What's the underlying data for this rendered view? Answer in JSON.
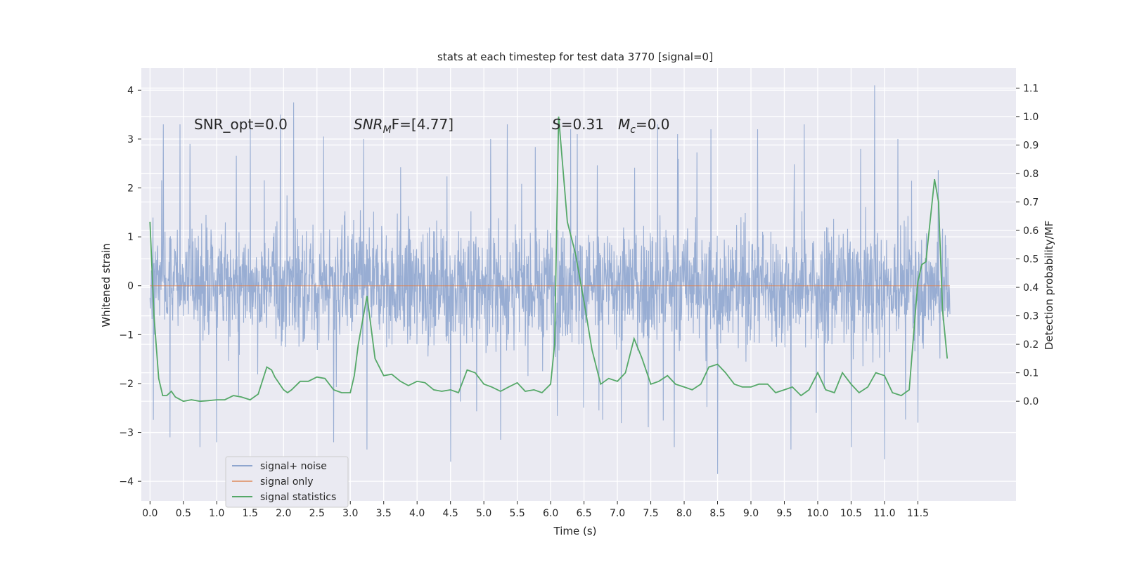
{
  "chart_data": {
    "type": "line",
    "title": "stats at each timestep for test data 3770 [signal=0]",
    "xlabel": "Time (s)",
    "ylabel_left": "Whitened strain",
    "ylabel_right": "Detection probability/MF",
    "xlim": [
      -0.13,
      12.97
    ],
    "ylim_left": [
      -4.4,
      4.45
    ],
    "ylim_right": [
      -0.35,
      1.17
    ],
    "x_ticks": [
      0.0,
      0.5,
      1.0,
      1.5,
      2.0,
      2.5,
      3.0,
      3.5,
      4.0,
      4.5,
      5.0,
      5.5,
      6.0,
      6.5,
      7.0,
      7.5,
      8.0,
      8.5,
      9.0,
      9.5,
      10.0,
      10.5,
      11.0,
      11.5
    ],
    "x_tick_labels": [
      "0.0",
      "0.5",
      "1.0",
      "1.5",
      "2.0",
      "2.5",
      "3.0",
      "3.5",
      "4.0",
      "4.5",
      "5.0",
      "5.5",
      "6.0",
      "6.5",
      "7.0",
      "7.5",
      "8.0",
      "8.5",
      "9.0",
      "9.5",
      "10.0",
      "10.5",
      "11.0",
      "11.5"
    ],
    "y_left_ticks": [
      -4,
      -3,
      -2,
      -1,
      0,
      1,
      2,
      3,
      4
    ],
    "y_left_tick_labels": [
      "−4",
      "−3",
      "−2",
      "−1",
      "0",
      "1",
      "2",
      "3",
      "4"
    ],
    "y_right_ticks": [
      0.0,
      0.1,
      0.2,
      0.3,
      0.4,
      0.5,
      0.6,
      0.7,
      0.8,
      0.9,
      1.0,
      1.1
    ],
    "y_right_tick_labels": [
      "0.0",
      "0.1",
      "0.2",
      "0.3",
      "0.4",
      "0.5",
      "0.6",
      "0.7",
      "0.8",
      "0.9",
      "1.0",
      "1.1"
    ],
    "grid": true,
    "legend_position": "lower-left",
    "annotations": {
      "snr_opt": "SNR_opt=0.0",
      "snr_mf_main": "SNR",
      "snr_mf_sub": "M",
      "snr_mf_rest": "F=[4.77]",
      "stat_main": "S",
      "stat_rest": "=0.31",
      "mc_main": "M",
      "mc_sub": "c",
      "mc_rest": "=0.0"
    },
    "series": [
      {
        "name": "signal+ noise",
        "color": "#8fa6cf",
        "axis": "left",
        "x_range": [
          0.0,
          11.98
        ],
        "envelope": {
          "typical_abs": 1.35,
          "max_peaks": [
            [
              0.2,
              3.3
            ],
            [
              0.45,
              3.3
            ],
            [
              0.6,
              2.9
            ],
            [
              1.5,
              3.3
            ],
            [
              1.95,
              3.5
            ],
            [
              2.15,
              3.75
            ],
            [
              2.6,
              3.05
            ],
            [
              3.2,
              3.0
            ],
            [
              5.1,
              3.0
            ],
            [
              5.35,
              3.3
            ],
            [
              6.3,
              3.2
            ],
            [
              6.4,
              3.1
            ],
            [
              7.6,
              3.3
            ],
            [
              7.9,
              3.1
            ],
            [
              8.4,
              3.2
            ],
            [
              9.1,
              3.2
            ],
            [
              9.8,
              3.3
            ],
            [
              10.5,
              3.1
            ],
            [
              10.85,
              4.1
            ],
            [
              11.2,
              3.0
            ]
          ],
          "min_peaks": [
            [
              0.3,
              -3.1
            ],
            [
              0.75,
              -3.3
            ],
            [
              1.0,
              -3.2
            ],
            [
              2.75,
              -3.2
            ],
            [
              3.25,
              -3.35
            ],
            [
              4.5,
              -3.6
            ],
            [
              5.25,
              -3.15
            ],
            [
              7.85,
              -3.3
            ],
            [
              8.5,
              -3.85
            ],
            [
              9.6,
              -3.35
            ],
            [
              10.5,
              -3.3
            ],
            [
              11.0,
              -3.55
            ],
            [
              11.5,
              -2.8
            ]
          ]
        }
      },
      {
        "name": "signal only",
        "color": "#dd8452",
        "axis": "left",
        "x": [
          0.0,
          11.98
        ],
        "y": [
          0.0,
          0.0
        ]
      },
      {
        "name": "signal statistics",
        "color": "#55a868",
        "axis": "right",
        "x": [
          0.0,
          0.06,
          0.13,
          0.19,
          0.25,
          0.32,
          0.38,
          0.5,
          0.62,
          0.75,
          0.87,
          1.0,
          1.12,
          1.25,
          1.37,
          1.5,
          1.62,
          1.75,
          1.82,
          1.87,
          2.0,
          2.06,
          2.12,
          2.25,
          2.37,
          2.5,
          2.62,
          2.75,
          2.87,
          3.0,
          3.06,
          3.12,
          3.25,
          3.37,
          3.5,
          3.62,
          3.75,
          3.87,
          4.0,
          4.12,
          4.25,
          4.37,
          4.5,
          4.62,
          4.75,
          4.87,
          5.0,
          5.12,
          5.25,
          5.37,
          5.5,
          5.62,
          5.75,
          5.87,
          6.0,
          6.06,
          6.12,
          6.25,
          6.37,
          6.5,
          6.62,
          6.75,
          6.87,
          7.0,
          7.12,
          7.25,
          7.37,
          7.5,
          7.62,
          7.75,
          7.87,
          8.0,
          8.12,
          8.25,
          8.37,
          8.5,
          8.62,
          8.75,
          8.87,
          9.0,
          9.12,
          9.25,
          9.37,
          9.5,
          9.62,
          9.75,
          9.87,
          10.0,
          10.12,
          10.25,
          10.37,
          10.5,
          10.62,
          10.75,
          10.87,
          11.0,
          11.12,
          11.25,
          11.37,
          11.5,
          11.56,
          11.62,
          11.75,
          11.81,
          11.87,
          11.94
        ],
        "y": [
          0.63,
          0.3,
          0.08,
          0.02,
          0.02,
          0.035,
          0.015,
          0.0,
          0.005,
          0.0,
          0.002,
          0.005,
          0.005,
          0.02,
          0.015,
          0.005,
          0.025,
          0.12,
          0.11,
          0.085,
          0.04,
          0.03,
          0.04,
          0.07,
          0.07,
          0.085,
          0.08,
          0.04,
          0.03,
          0.03,
          0.09,
          0.2,
          0.37,
          0.15,
          0.09,
          0.095,
          0.07,
          0.055,
          0.07,
          0.065,
          0.04,
          0.035,
          0.04,
          0.03,
          0.11,
          0.1,
          0.06,
          0.05,
          0.035,
          0.05,
          0.065,
          0.035,
          0.04,
          0.03,
          0.06,
          0.2,
          1.0,
          0.63,
          0.52,
          0.35,
          0.18,
          0.06,
          0.08,
          0.07,
          0.1,
          0.22,
          0.15,
          0.06,
          0.07,
          0.09,
          0.06,
          0.05,
          0.04,
          0.06,
          0.12,
          0.13,
          0.1,
          0.06,
          0.05,
          0.05,
          0.06,
          0.06,
          0.03,
          0.04,
          0.05,
          0.02,
          0.04,
          0.1,
          0.04,
          0.03,
          0.1,
          0.06,
          0.03,
          0.05,
          0.1,
          0.09,
          0.03,
          0.02,
          0.04,
          0.42,
          0.48,
          0.49,
          0.78,
          0.7,
          0.32,
          0.15
        ]
      }
    ]
  }
}
